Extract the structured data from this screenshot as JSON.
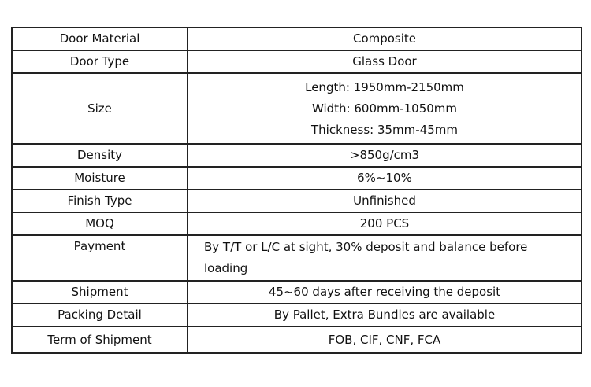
{
  "rows": [
    {
      "label": "Door Material",
      "value": "Composite"
    },
    {
      "label": "Door Type",
      "value": "Glass Door"
    },
    {
      "label": "Size",
      "lines": [
        "Length: 1950mm-2150mm",
        "Width: 600mm-1050mm",
        "Thickness: 35mm-45mm"
      ]
    },
    {
      "label": "Density",
      "value": ">850g/cm3"
    },
    {
      "label": "Moisture",
      "value": "6%~10%"
    },
    {
      "label": "Finish Type",
      "value": "Unfinished"
    },
    {
      "label": "MOQ",
      "value": "200 PCS"
    },
    {
      "label": "Payment",
      "lines": [
        "By T/T or L/C at sight, 30% deposit and balance before",
        "loading"
      ]
    },
    {
      "label": "Shipment",
      "value": "45~60 days after receiving the deposit"
    },
    {
      "label": "Packing Detail",
      "value": "By Pallet, Extra Bundles are available"
    },
    {
      "label": "Term of Shipment",
      "value": "FOB, CIF, CNF, FCA"
    }
  ]
}
